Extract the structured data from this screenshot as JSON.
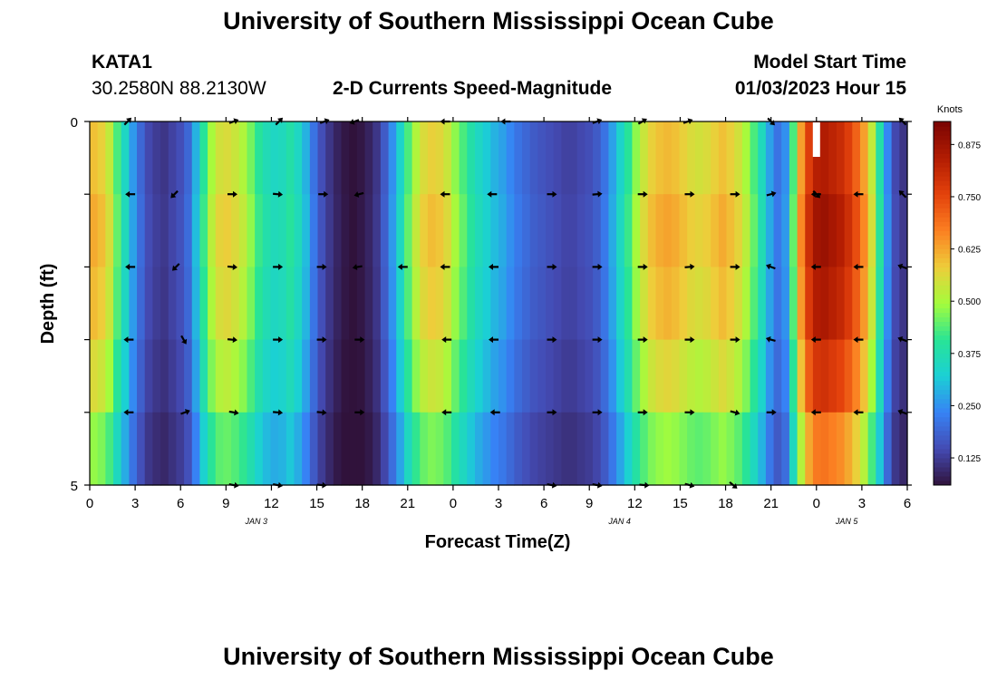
{
  "header": {
    "title": "University of Southern Mississippi Ocean Cube",
    "station_id": "KATA1",
    "coordinates": "30.2580N  88.2130W",
    "chart_title": "2-D Currents Speed-Magnitude",
    "model_start_label": "Model Start Time",
    "model_start_value": "01/03/2023 Hour 15"
  },
  "footer": {
    "title": "University of Southern Mississippi Ocean Cube"
  },
  "chart_data": {
    "type": "heatmap",
    "title": "2-D Currents Speed-Magnitude",
    "xlabel": "Forecast Time(Z)",
    "ylabel": "Depth (ft)",
    "x_hours": [
      0,
      54
    ],
    "ylim": [
      0,
      5
    ],
    "y_ticks": [
      "0",
      "",
      "",
      "",
      "",
      "5"
    ],
    "x_ticks": [
      "0",
      "3",
      "6",
      "9",
      "12",
      "15",
      "18",
      "21",
      "0",
      "3",
      "6",
      "9",
      "12",
      "15",
      "18",
      "21",
      "0",
      "3",
      "6"
    ],
    "date_labels": [
      {
        "hour": 11,
        "text": "JAN 3"
      },
      {
        "hour": 35,
        "text": "JAN 4"
      },
      {
        "hour": 50,
        "text": "JAN 5"
      }
    ],
    "colorbar": {
      "unit": "Knots",
      "min": 0.06,
      "max": 0.93,
      "ticks": [
        "0.125",
        "0.250",
        "0.375",
        "0.500",
        "0.625",
        "0.750",
        "0.875"
      ],
      "tick_values": [
        0.125,
        0.25,
        0.375,
        0.5,
        0.625,
        0.75,
        0.875
      ]
    },
    "speed_profile_knots": [
      0.62,
      0.6,
      0.55,
      0.45,
      0.36,
      0.27,
      0.2,
      0.15,
      0.13,
      0.12,
      0.14,
      0.16,
      0.2,
      0.3,
      0.42,
      0.52,
      0.57,
      0.58,
      0.56,
      0.53,
      0.48,
      0.42,
      0.38,
      0.36,
      0.37,
      0.4,
      0.36,
      0.3,
      0.22,
      0.16,
      0.12,
      0.09,
      0.07,
      0.06,
      0.07,
      0.09,
      0.12,
      0.18,
      0.26,
      0.35,
      0.45,
      0.53,
      0.58,
      0.6,
      0.59,
      0.56,
      0.5,
      0.45,
      0.4,
      0.36,
      0.33,
      0.3,
      0.28,
      0.25,
      0.22,
      0.2,
      0.18,
      0.17,
      0.16,
      0.15,
      0.14,
      0.14,
      0.15,
      0.16,
      0.18,
      0.22,
      0.28,
      0.35,
      0.42,
      0.5,
      0.56,
      0.6,
      0.62,
      0.63,
      0.62,
      0.6,
      0.58,
      0.57,
      0.58,
      0.6,
      0.62,
      0.6,
      0.57,
      0.52,
      0.45,
      0.37,
      0.28,
      0.22,
      0.26,
      0.45,
      0.66,
      0.8,
      0.87,
      0.88,
      0.86,
      0.84,
      0.8,
      0.74,
      0.66,
      0.55,
      0.4,
      0.25,
      0.15,
      0.12
    ],
    "depth_factors": [
      0.96,
      1.0,
      0.97,
      0.9,
      0.78
    ],
    "arrows": [
      {
        "hour": 2.5,
        "depth": 0,
        "angle": 45
      },
      {
        "hour": 9.5,
        "depth": 0,
        "angle": 20
      },
      {
        "hour": 12.5,
        "depth": 0,
        "angle": 45
      },
      {
        "hour": 15.5,
        "depth": 0,
        "angle": 20
      },
      {
        "hour": 17.5,
        "depth": 0,
        "angle": 200
      },
      {
        "hour": 23.5,
        "depth": 0,
        "angle": 180
      },
      {
        "hour": 27.5,
        "depth": 0,
        "angle": 180
      },
      {
        "hour": 33.5,
        "depth": 0,
        "angle": 20
      },
      {
        "hour": 36.5,
        "depth": 0,
        "angle": 30
      },
      {
        "hour": 39.5,
        "depth": 0,
        "angle": 20
      },
      {
        "hour": 45,
        "depth": 0,
        "angle": -45
      },
      {
        "hour": 53.7,
        "depth": 0,
        "angle": 135
      },
      {
        "hour": 2.7,
        "depth": 1,
        "angle": 180
      },
      {
        "hour": 5.6,
        "depth": 1,
        "angle": 225
      },
      {
        "hour": 9.4,
        "depth": 1,
        "angle": 0
      },
      {
        "hour": 12.4,
        "depth": 1,
        "angle": -5
      },
      {
        "hour": 15.4,
        "depth": 1,
        "angle": 0
      },
      {
        "hour": 17.8,
        "depth": 1,
        "angle": 195
      },
      {
        "hour": 23.5,
        "depth": 1,
        "angle": 180
      },
      {
        "hour": 26.6,
        "depth": 1,
        "angle": 180
      },
      {
        "hour": 30.5,
        "depth": 1,
        "angle": 0
      },
      {
        "hour": 33.5,
        "depth": 1,
        "angle": 5
      },
      {
        "hour": 36.5,
        "depth": 1,
        "angle": 0
      },
      {
        "hour": 39.6,
        "depth": 1,
        "angle": 0
      },
      {
        "hour": 42.6,
        "depth": 1,
        "angle": 0
      },
      {
        "hour": 45,
        "depth": 1,
        "angle": 15
      },
      {
        "hour": 48,
        "depth": 1,
        "angle": -45
      },
      {
        "hour": 48,
        "depth": 1,
        "angle": 180
      },
      {
        "hour": 50.8,
        "depth": 1,
        "angle": 180
      },
      {
        "hour": 53.7,
        "depth": 1,
        "angle": 135
      },
      {
        "hour": 2.7,
        "depth": 2,
        "angle": 180
      },
      {
        "hour": 5.7,
        "depth": 2,
        "angle": 225
      },
      {
        "hour": 9.4,
        "depth": 2,
        "angle": -5
      },
      {
        "hour": 12.4,
        "depth": 2,
        "angle": 0
      },
      {
        "hour": 15.3,
        "depth": 2,
        "angle": 0
      },
      {
        "hour": 17.7,
        "depth": 2,
        "angle": 190
      },
      {
        "hour": 20.7,
        "depth": 2,
        "angle": 180
      },
      {
        "hour": 23.5,
        "depth": 2,
        "angle": 180
      },
      {
        "hour": 26.7,
        "depth": 2,
        "angle": 180
      },
      {
        "hour": 30.5,
        "depth": 2,
        "angle": 0
      },
      {
        "hour": 33.5,
        "depth": 2,
        "angle": 0
      },
      {
        "hour": 36.5,
        "depth": 2,
        "angle": 0
      },
      {
        "hour": 39.6,
        "depth": 2,
        "angle": 5
      },
      {
        "hour": 42.6,
        "depth": 2,
        "angle": 0
      },
      {
        "hour": 45,
        "depth": 2,
        "angle": 160
      },
      {
        "hour": 48,
        "depth": 2,
        "angle": 180
      },
      {
        "hour": 50.8,
        "depth": 2,
        "angle": 180
      },
      {
        "hour": 53.7,
        "depth": 2,
        "angle": 160
      },
      {
        "hour": 2.6,
        "depth": 3,
        "angle": 180
      },
      {
        "hour": 6.2,
        "depth": 3,
        "angle": -60
      },
      {
        "hour": 9.4,
        "depth": 3,
        "angle": -5
      },
      {
        "hour": 12.4,
        "depth": 3,
        "angle": 0
      },
      {
        "hour": 15.3,
        "depth": 3,
        "angle": 0
      },
      {
        "hour": 17.8,
        "depth": 3,
        "angle": 0
      },
      {
        "hour": 23.6,
        "depth": 3,
        "angle": 180
      },
      {
        "hour": 26.7,
        "depth": 3,
        "angle": 180
      },
      {
        "hour": 30.5,
        "depth": 3,
        "angle": 0
      },
      {
        "hour": 33.5,
        "depth": 3,
        "angle": 0
      },
      {
        "hour": 36.5,
        "depth": 3,
        "angle": 0
      },
      {
        "hour": 39.6,
        "depth": 3,
        "angle": 0
      },
      {
        "hour": 42.6,
        "depth": 3,
        "angle": 0
      },
      {
        "hour": 45,
        "depth": 3,
        "angle": 165
      },
      {
        "hour": 48,
        "depth": 3,
        "angle": 180
      },
      {
        "hour": 50.8,
        "depth": 3,
        "angle": 180
      },
      {
        "hour": 53.7,
        "depth": 3,
        "angle": 160
      },
      {
        "hour": 2.6,
        "depth": 4,
        "angle": 180
      },
      {
        "hour": 6.3,
        "depth": 4,
        "angle": 20
      },
      {
        "hour": 9.5,
        "depth": 4,
        "angle": -10
      },
      {
        "hour": 12.4,
        "depth": 4,
        "angle": -5
      },
      {
        "hour": 15.3,
        "depth": 4,
        "angle": -5
      },
      {
        "hour": 17.8,
        "depth": 4,
        "angle": 0
      },
      {
        "hour": 23.6,
        "depth": 4,
        "angle": 180
      },
      {
        "hour": 26.8,
        "depth": 4,
        "angle": 180
      },
      {
        "hour": 30.5,
        "depth": 4,
        "angle": 0
      },
      {
        "hour": 33.5,
        "depth": 4,
        "angle": 0
      },
      {
        "hour": 36.5,
        "depth": 4,
        "angle": 0
      },
      {
        "hour": 39.6,
        "depth": 4,
        "angle": 0
      },
      {
        "hour": 42.6,
        "depth": 4,
        "angle": -15
      },
      {
        "hour": 45,
        "depth": 4,
        "angle": 0
      },
      {
        "hour": 48,
        "depth": 4,
        "angle": 180
      },
      {
        "hour": 50.8,
        "depth": 4,
        "angle": 180
      },
      {
        "hour": 53.7,
        "depth": 4,
        "angle": 160
      },
      {
        "hour": 9.5,
        "depth": 5,
        "angle": -10
      },
      {
        "hour": 12.4,
        "depth": 5,
        "angle": -10
      },
      {
        "hour": 15.3,
        "depth": 5,
        "angle": -5
      },
      {
        "hour": 30.5,
        "depth": 5,
        "angle": -10
      },
      {
        "hour": 33.5,
        "depth": 5,
        "angle": -10
      },
      {
        "hour": 36.6,
        "depth": 5,
        "angle": -5
      },
      {
        "hour": 39.6,
        "depth": 5,
        "angle": -15
      },
      {
        "hour": 42.5,
        "depth": 5,
        "angle": -40
      }
    ]
  },
  "colors": {
    "arrow": "#000000",
    "frame": "#000000",
    "background": "#ffffff"
  }
}
